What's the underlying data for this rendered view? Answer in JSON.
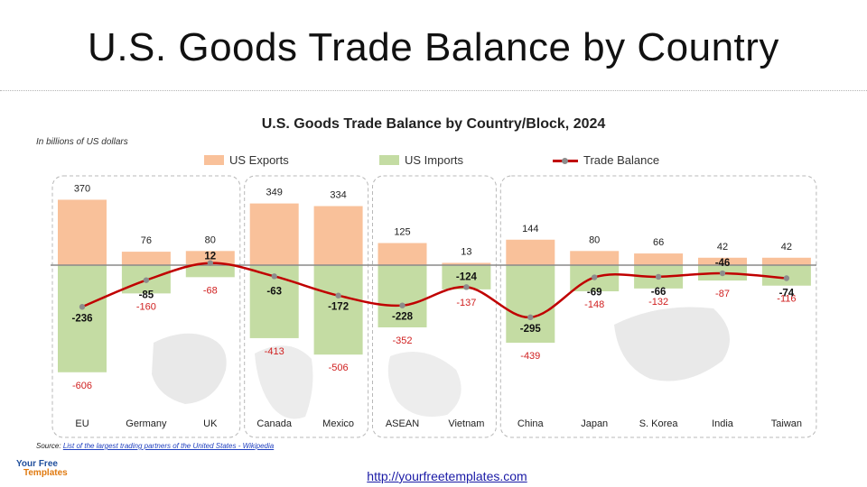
{
  "page": {
    "title": "U.S. Goods Trade Balance by Country",
    "units_note": "In billions of US dollars",
    "source_label": "Source:",
    "source_link": "List of the largest trading partners of the United States - Wikipedia",
    "url": "http://yourfreetemplates.com",
    "logo_line1": "Your Free",
    "logo_line2": "Templates"
  },
  "colors": {
    "exports": "#f9c19a",
    "imports": "#c4dca3",
    "balance_line": "#c00000",
    "balance_marker": "#8c8c8c",
    "import_label": "#d02020"
  },
  "chart_data": {
    "type": "bar",
    "title": "U.S. Goods Trade Balance by Country/Block, 2024",
    "ylabel": "In billions of US dollars",
    "categories": [
      "EU",
      "Germany",
      "UK",
      "Canada",
      "Mexico",
      "ASEAN",
      "Vietnam",
      "China",
      "Japan",
      "S. Korea",
      "India",
      "Taiwan"
    ],
    "groups": [
      [
        "EU",
        "Germany",
        "UK"
      ],
      [
        "Canada",
        "Mexico"
      ],
      [
        "ASEAN",
        "Vietnam"
      ],
      [
        "China",
        "Japan",
        "S. Korea",
        "India",
        "Taiwan"
      ]
    ],
    "series": [
      {
        "name": "US Exports",
        "kind": "bar",
        "values": [
          370,
          76,
          80,
          349,
          334,
          125,
          13,
          144,
          80,
          66,
          42,
          42
        ]
      },
      {
        "name": "US Imports",
        "kind": "bar",
        "values": [
          -606,
          -160,
          -68,
          -413,
          -506,
          -352,
          -137,
          -439,
          -148,
          -132,
          -87,
          -116
        ]
      },
      {
        "name": "Trade Balance",
        "kind": "line",
        "values": [
          -236,
          -85,
          12,
          -63,
          -172,
          -228,
          -124,
          -295,
          -69,
          -66,
          -46,
          -74
        ]
      }
    ],
    "ylim": [
      -650,
      400
    ],
    "legend": "top-center",
    "grid": false
  }
}
